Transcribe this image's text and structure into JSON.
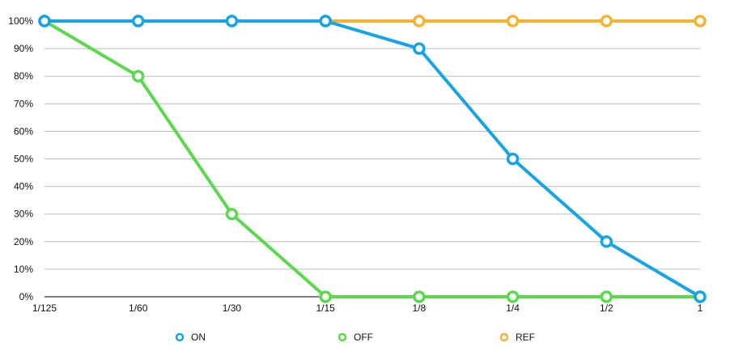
{
  "chart_data": {
    "type": "line",
    "categories": [
      "1/125",
      "1/60",
      "1/30",
      "1/15",
      "1/8",
      "1/4",
      "1/2",
      "1"
    ],
    "ylim": [
      0,
      100
    ],
    "yticks": [
      0,
      10,
      20,
      30,
      40,
      50,
      60,
      70,
      80,
      90,
      100
    ],
    "ytick_labels": [
      "0%",
      "10%",
      "20%",
      "30%",
      "40%",
      "50%",
      "60%",
      "70%",
      "80%",
      "90%",
      "100%"
    ],
    "grid": true,
    "legend_position": "bottom",
    "title": "",
    "xlabel": "",
    "ylabel": "",
    "series": [
      {
        "name": "REF",
        "color": "#F5B335",
        "values": [
          100,
          100,
          100,
          100,
          100,
          100,
          100,
          100
        ]
      },
      {
        "name": "OFF",
        "color": "#5CD84F",
        "values": [
          100,
          80,
          30,
          0,
          0,
          0,
          0,
          0
        ]
      },
      {
        "name": "ON",
        "color": "#17A3E6",
        "values": [
          100,
          100,
          100,
          100,
          90,
          50,
          20,
          0
        ]
      }
    ],
    "legend": [
      "ON",
      "OFF",
      "REF"
    ]
  }
}
